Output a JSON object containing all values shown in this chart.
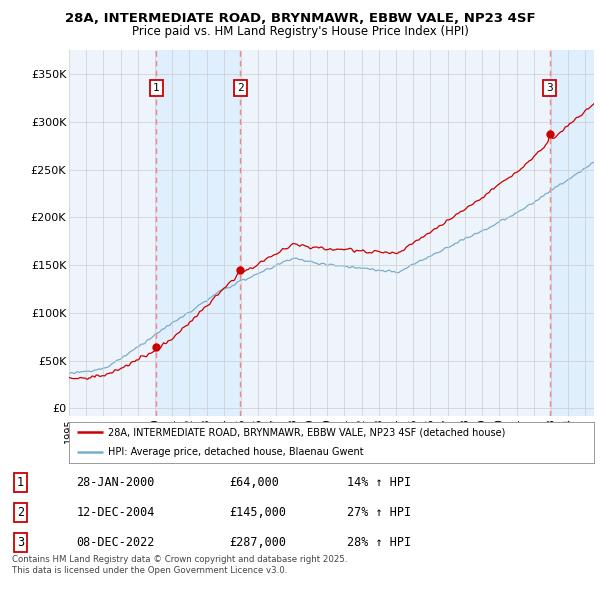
{
  "title_line1": "28A, INTERMEDIATE ROAD, BRYNMAWR, EBBW VALE, NP23 4SF",
  "title_line2": "Price paid vs. HM Land Registry's House Price Index (HPI)",
  "yticks": [
    0,
    50000,
    100000,
    150000,
    200000,
    250000,
    300000,
    350000
  ],
  "ytick_labels": [
    "£0",
    "£50K",
    "£100K",
    "£150K",
    "£200K",
    "£250K",
    "£300K",
    "£350K"
  ],
  "ylim": [
    -8000,
    375000
  ],
  "sale_dates": [
    2000.07,
    2004.95,
    2022.94
  ],
  "sale_prices": [
    64000,
    145000,
    287000
  ],
  "sale_labels": [
    "1",
    "2",
    "3"
  ],
  "red_line_color": "#cc0000",
  "blue_line_color": "#7aadcc",
  "shade_color": "#ddeeff",
  "dashed_line_color": "#ee8888",
  "background_color": "#eef4fb",
  "grid_color": "#cccccc",
  "legend_label_red": "28A, INTERMEDIATE ROAD, BRYNMAWR, EBBW VALE, NP23 4SF (detached house)",
  "legend_label_blue": "HPI: Average price, detached house, Blaenau Gwent",
  "table_entries": [
    {
      "num": "1",
      "date": "28-JAN-2000",
      "price": "£64,000",
      "change": "14% ↑ HPI"
    },
    {
      "num": "2",
      "date": "12-DEC-2004",
      "price": "£145,000",
      "change": "27% ↑ HPI"
    },
    {
      "num": "3",
      "date": "08-DEC-2022",
      "price": "£287,000",
      "change": "28% ↑ HPI"
    }
  ],
  "footer": "Contains HM Land Registry data © Crown copyright and database right 2025.\nThis data is licensed under the Open Government Licence v3.0.",
  "xmin": 1995.0,
  "xmax": 2025.5,
  "xstart": 1995,
  "xend": 2026
}
